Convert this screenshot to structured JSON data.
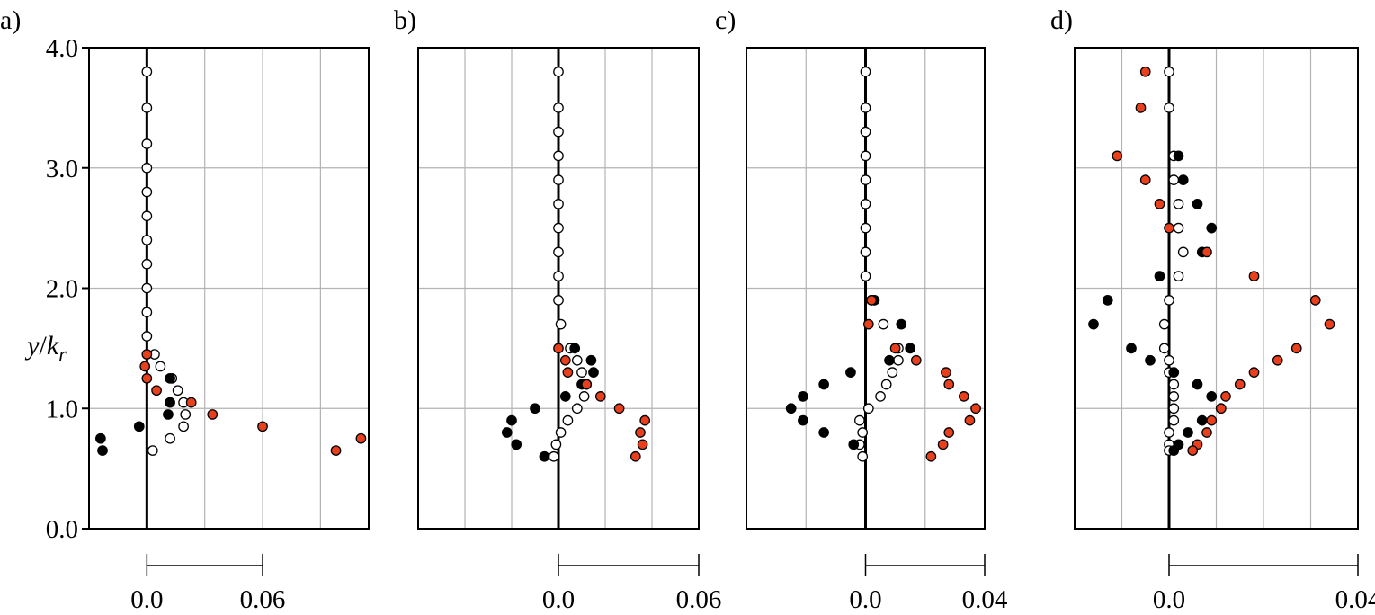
{
  "figure": {
    "ylabel": "y/k_r",
    "ylabel_parts": {
      "y": "y",
      "slash": "/",
      "k": "k",
      "sub": "r"
    }
  },
  "colors": {
    "filled": "#000000",
    "open": "#ffffff",
    "red": "#e8401c",
    "grid": "#b3b3b3",
    "frame": "#000000"
  },
  "chart_data": [
    {
      "type": "scatter",
      "panel_label": "a)",
      "ylim": [
        0,
        4
      ],
      "yticks": [
        0,
        1,
        2,
        3,
        4
      ],
      "ytick_labels": [
        "0.0",
        "1.0",
        "2.0",
        "3.0",
        "4.0"
      ],
      "xlim": [
        -0.03,
        0.115
      ],
      "x_gridlines": [
        -0.03,
        0.0,
        0.03,
        0.06,
        0.09
      ],
      "scale_bar": {
        "from": 0.0,
        "to": 0.06,
        "labels": [
          "0.0",
          "0.06"
        ]
      },
      "series": [
        {
          "style": "open",
          "points": [
            [
              0.0,
              3.8
            ],
            [
              0.0,
              3.5
            ],
            [
              0.0,
              3.2
            ],
            [
              0.0,
              3.0
            ],
            [
              0.0,
              2.8
            ],
            [
              0.0,
              2.6
            ],
            [
              0.0,
              2.4
            ],
            [
              0.0,
              2.2
            ],
            [
              0.0,
              2.0
            ],
            [
              0.0,
              1.8
            ],
            [
              0.0,
              1.6
            ],
            [
              0.004,
              1.45
            ],
            [
              0.007,
              1.35
            ],
            [
              0.013,
              1.25
            ],
            [
              0.016,
              1.15
            ],
            [
              0.019,
              1.05
            ],
            [
              0.02,
              0.95
            ],
            [
              0.019,
              0.85
            ],
            [
              0.012,
              0.75
            ],
            [
              0.003,
              0.65
            ]
          ]
        },
        {
          "style": "filled",
          "points": [
            [
              0.012,
              1.25
            ],
            [
              0.012,
              1.05
            ],
            [
              0.011,
              0.95
            ],
            [
              -0.004,
              0.85
            ],
            [
              -0.024,
              0.75
            ],
            [
              -0.023,
              0.65
            ]
          ]
        },
        {
          "style": "red",
          "points": [
            [
              0.0,
              1.45
            ],
            [
              -0.001,
              1.35
            ],
            [
              0.0,
              1.25
            ],
            [
              0.005,
              1.15
            ],
            [
              0.023,
              1.05
            ],
            [
              0.034,
              0.95
            ],
            [
              0.06,
              0.85
            ],
            [
              0.098,
              0.65
            ],
            [
              0.111,
              0.75
            ]
          ]
        }
      ]
    },
    {
      "type": "scatter",
      "panel_label": "b)",
      "ylim": [
        0,
        4
      ],
      "xlim": [
        -0.06,
        0.06
      ],
      "x_gridlines": [
        -0.04,
        -0.02,
        0.0,
        0.02,
        0.04
      ],
      "scale_bar": {
        "from": 0.0,
        "to": 0.06,
        "labels": [
          "0.0",
          "0.06"
        ]
      },
      "series": [
        {
          "style": "open",
          "points": [
            [
              0.0,
              3.8
            ],
            [
              0.0,
              3.5
            ],
            [
              0.0,
              3.3
            ],
            [
              0.0,
              3.1
            ],
            [
              0.0,
              2.9
            ],
            [
              0.0,
              2.7
            ],
            [
              0.0,
              2.5
            ],
            [
              0.0,
              2.3
            ],
            [
              0.0,
              2.1
            ],
            [
              0.0,
              1.9
            ],
            [
              0.001,
              1.7
            ],
            [
              0.005,
              1.5
            ],
            [
              0.008,
              1.4
            ],
            [
              0.01,
              1.3
            ],
            [
              0.012,
              1.2
            ],
            [
              0.011,
              1.1
            ],
            [
              0.008,
              1.0
            ],
            [
              0.004,
              0.9
            ],
            [
              0.001,
              0.8
            ],
            [
              -0.001,
              0.7
            ],
            [
              -0.002,
              0.6
            ]
          ]
        },
        {
          "style": "filled",
          "points": [
            [
              0.007,
              1.5
            ],
            [
              0.014,
              1.4
            ],
            [
              0.015,
              1.3
            ],
            [
              0.01,
              1.2
            ],
            [
              0.003,
              1.1
            ],
            [
              -0.01,
              1.0
            ],
            [
              -0.02,
              0.9
            ],
            [
              -0.022,
              0.8
            ],
            [
              -0.018,
              0.7
            ],
            [
              -0.006,
              0.6
            ]
          ]
        },
        {
          "style": "red",
          "points": [
            [
              0.0,
              1.5
            ],
            [
              0.003,
              1.4
            ],
            [
              0.004,
              1.3
            ],
            [
              0.012,
              1.2
            ],
            [
              0.018,
              1.1
            ],
            [
              0.026,
              1.0
            ],
            [
              0.037,
              0.9
            ],
            [
              0.035,
              0.8
            ],
            [
              0.036,
              0.7
            ],
            [
              0.033,
              0.6
            ]
          ]
        }
      ]
    },
    {
      "type": "scatter",
      "panel_label": "c)",
      "ylim": [
        0,
        4
      ],
      "xlim": [
        -0.04,
        0.04
      ],
      "x_gridlines": [
        -0.02,
        0.0,
        0.02
      ],
      "scale_bar": {
        "from": 0.0,
        "to": 0.04,
        "labels": [
          "0.0",
          "0.04"
        ]
      },
      "series": [
        {
          "style": "open",
          "points": [
            [
              0.0,
              3.8
            ],
            [
              0.0,
              3.5
            ],
            [
              0.0,
              3.3
            ],
            [
              0.0,
              3.1
            ],
            [
              0.0,
              2.9
            ],
            [
              0.0,
              2.7
            ],
            [
              0.0,
              2.5
            ],
            [
              0.0,
              2.3
            ],
            [
              0.0,
              2.1
            ],
            [
              0.002,
              1.9
            ],
            [
              0.006,
              1.7
            ],
            [
              0.011,
              1.5
            ],
            [
              0.011,
              1.4
            ],
            [
              0.009,
              1.3
            ],
            [
              0.007,
              1.2
            ],
            [
              0.005,
              1.1
            ],
            [
              0.001,
              1.0
            ],
            [
              -0.002,
              0.9
            ],
            [
              -0.001,
              0.8
            ],
            [
              -0.002,
              0.7
            ],
            [
              -0.001,
              0.6
            ]
          ]
        },
        {
          "style": "filled",
          "points": [
            [
              0.003,
              1.9
            ],
            [
              0.012,
              1.7
            ],
            [
              0.015,
              1.5
            ],
            [
              0.008,
              1.4
            ],
            [
              -0.005,
              1.3
            ],
            [
              -0.014,
              1.2
            ],
            [
              -0.021,
              1.1
            ],
            [
              -0.025,
              1.0
            ],
            [
              -0.021,
              0.9
            ],
            [
              -0.014,
              0.8
            ],
            [
              -0.004,
              0.7
            ]
          ]
        },
        {
          "style": "red",
          "points": [
            [
              0.002,
              1.9
            ],
            [
              0.001,
              1.7
            ],
            [
              0.01,
              1.5
            ],
            [
              0.017,
              1.4
            ],
            [
              0.027,
              1.3
            ],
            [
              0.028,
              1.2
            ],
            [
              0.033,
              1.1
            ],
            [
              0.037,
              1.0
            ],
            [
              0.035,
              0.9
            ],
            [
              0.028,
              0.8
            ],
            [
              0.026,
              0.7
            ],
            [
              0.022,
              0.6
            ]
          ]
        }
      ]
    },
    {
      "type": "scatter",
      "panel_label": "d)",
      "ylim": [
        0,
        4
      ],
      "xlim": [
        -0.02,
        0.04
      ],
      "x_gridlines": [
        -0.01,
        0.0,
        0.01,
        0.02,
        0.03
      ],
      "scale_bar": {
        "from": 0.0,
        "to": 0.04,
        "labels": [
          "0.0",
          "0.04"
        ]
      },
      "series": [
        {
          "style": "open",
          "points": [
            [
              0.0,
              3.8
            ],
            [
              0.0,
              3.5
            ],
            [
              0.001,
              3.1
            ],
            [
              0.001,
              2.9
            ],
            [
              0.002,
              2.7
            ],
            [
              0.002,
              2.5
            ],
            [
              0.003,
              2.3
            ],
            [
              0.002,
              2.1
            ],
            [
              0.0,
              1.9
            ],
            [
              -0.001,
              1.7
            ],
            [
              -0.001,
              1.5
            ],
            [
              0.0,
              1.4
            ],
            [
              0.0,
              1.3
            ],
            [
              0.001,
              1.2
            ],
            [
              0.001,
              1.1
            ],
            [
              0.001,
              1.0
            ],
            [
              0.001,
              0.9
            ],
            [
              0.0,
              0.8
            ],
            [
              0.0,
              0.7
            ],
            [
              0.0,
              0.65
            ]
          ]
        },
        {
          "style": "filled",
          "points": [
            [
              0.002,
              3.1
            ],
            [
              0.003,
              2.9
            ],
            [
              0.006,
              2.7
            ],
            [
              0.009,
              2.5
            ],
            [
              0.007,
              2.3
            ],
            [
              -0.002,
              2.1
            ],
            [
              -0.013,
              1.9
            ],
            [
              -0.016,
              1.7
            ],
            [
              -0.008,
              1.5
            ],
            [
              -0.004,
              1.4
            ],
            [
              0.001,
              1.3
            ],
            [
              0.006,
              1.2
            ],
            [
              0.009,
              1.1
            ],
            [
              0.011,
              1.0
            ],
            [
              0.007,
              0.9
            ],
            [
              0.004,
              0.8
            ],
            [
              0.002,
              0.7
            ],
            [
              0.001,
              0.65
            ]
          ]
        },
        {
          "style": "red",
          "points": [
            [
              -0.005,
              3.8
            ],
            [
              -0.006,
              3.5
            ],
            [
              -0.011,
              3.1
            ],
            [
              -0.005,
              2.9
            ],
            [
              -0.002,
              2.7
            ],
            [
              0.0,
              2.5
            ],
            [
              0.008,
              2.3
            ],
            [
              0.018,
              2.1
            ],
            [
              0.031,
              1.9
            ],
            [
              0.034,
              1.7
            ],
            [
              0.027,
              1.5
            ],
            [
              0.023,
              1.4
            ],
            [
              0.018,
              1.3
            ],
            [
              0.015,
              1.2
            ],
            [
              0.012,
              1.1
            ],
            [
              0.011,
              1.0
            ],
            [
              0.009,
              0.9
            ],
            [
              0.008,
              0.8
            ],
            [
              0.006,
              0.7
            ],
            [
              0.005,
              0.65
            ]
          ]
        }
      ]
    }
  ]
}
